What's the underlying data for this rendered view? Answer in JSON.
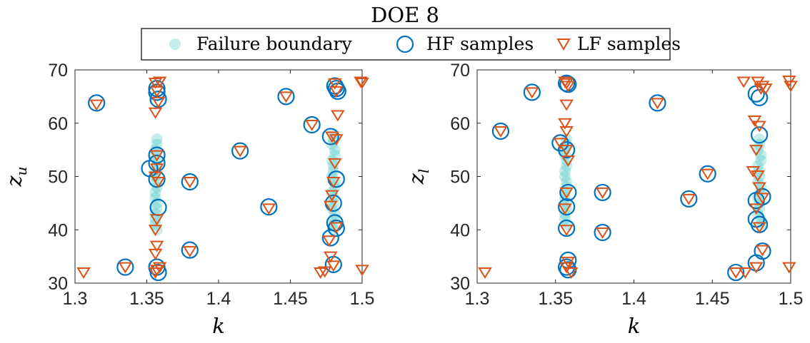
{
  "figure": {
    "title": "DOE 8",
    "legend": {
      "placement": "top-center",
      "entries": [
        {
          "label": "Failure boundary",
          "color": "#19b8b4",
          "marker": "filled-circle"
        },
        {
          "label": "HF samples",
          "color": "#0072bd",
          "marker": "open-circle"
        },
        {
          "label": "LF samples",
          "color": "#d95319",
          "marker": "open-down-triangle"
        }
      ]
    }
  },
  "chart_data": [
    {
      "type": "scatter",
      "title": "",
      "xlabel": "k",
      "ylabel": "z_u",
      "ylabel_main": "z",
      "ylabel_sub": "u",
      "xlim": [
        1.3,
        1.5
      ],
      "ylim": [
        30,
        70
      ],
      "xticks": [
        "1.3",
        "1.35",
        "1.4",
        "1.45",
        "1.5"
      ],
      "yticks": [
        "30",
        "40",
        "50",
        "60",
        "70"
      ],
      "grid": false,
      "series": [
        {
          "name": "Failure boundary",
          "color": "#19b8b4",
          "points": [
            [
              1.357,
              56
            ],
            [
              1.356,
              54
            ],
            [
              1.357,
              52
            ],
            [
              1.356,
              50
            ],
            [
              1.357,
              48
            ],
            [
              1.356,
              46
            ],
            [
              1.357,
              44
            ],
            [
              1.356,
              42
            ],
            [
              1.357,
              40
            ],
            [
              1.357,
              57
            ],
            [
              1.356,
              55
            ],
            [
              1.357,
              53
            ],
            [
              1.356,
              51
            ],
            [
              1.357,
              49
            ],
            [
              1.356,
              47
            ],
            [
              1.357,
              45
            ],
            [
              1.356,
              43
            ],
            [
              1.356,
              41
            ],
            [
              1.48,
              58
            ],
            [
              1.479,
              56
            ],
            [
              1.481,
              54
            ],
            [
              1.48,
              52
            ],
            [
              1.479,
              50
            ],
            [
              1.481,
              48
            ],
            [
              1.48,
              46
            ],
            [
              1.479,
              44
            ],
            [
              1.481,
              42
            ],
            [
              1.48,
              40
            ],
            [
              1.48,
              57
            ],
            [
              1.481,
              55
            ],
            [
              1.479,
              53
            ],
            [
              1.48,
              51
            ],
            [
              1.481,
              49
            ],
            [
              1.479,
              47
            ],
            [
              1.48,
              45
            ],
            [
              1.481,
              43
            ],
            [
              1.479,
              41
            ]
          ]
        },
        {
          "name": "HF samples",
          "color": "#0072bd",
          "points": [
            [
              1.315,
              63.8
            ],
            [
              1.335,
              33
            ],
            [
              1.352,
              51.5
            ],
            [
              1.357,
              66.5
            ],
            [
              1.357,
              65.8
            ],
            [
              1.358,
              64.5
            ],
            [
              1.357,
              54
            ],
            [
              1.357,
              52.5
            ],
            [
              1.357,
              49.5
            ],
            [
              1.358,
              44.2
            ],
            [
              1.357,
              33
            ],
            [
              1.358,
              32
            ],
            [
              1.38,
              49
            ],
            [
              1.38,
              36.2
            ],
            [
              1.415,
              54.8
            ],
            [
              1.435,
              44.3
            ],
            [
              1.447,
              65
            ],
            [
              1.465,
              59.7
            ],
            [
              1.478,
              57.5
            ],
            [
              1.481,
              67
            ],
            [
              1.482,
              66.5
            ],
            [
              1.483,
              66
            ],
            [
              1.482,
              49.5
            ],
            [
              1.48,
              45
            ],
            [
              1.481,
              41.3
            ],
            [
              1.482,
              40.3
            ],
            [
              1.478,
              38.5
            ],
            [
              1.48,
              33.5
            ]
          ]
        },
        {
          "name": "LF samples",
          "color": "#d95319",
          "points": [
            [
              1.306,
              32
            ],
            [
              1.315,
              63.5
            ],
            [
              1.335,
              33
            ],
            [
              1.356,
              67.6
            ],
            [
              1.359,
              67.8
            ],
            [
              1.357,
              66
            ],
            [
              1.358,
              64
            ],
            [
              1.356,
              62
            ],
            [
              1.357,
              54
            ],
            [
              1.357,
              51.5
            ],
            [
              1.356,
              50
            ],
            [
              1.358,
              49
            ],
            [
              1.357,
              42
            ],
            [
              1.356,
              40
            ],
            [
              1.357,
              37
            ],
            [
              1.356,
              35.5
            ],
            [
              1.359,
              33
            ],
            [
              1.357,
              32.5
            ],
            [
              1.356,
              32
            ],
            [
              1.38,
              49
            ],
            [
              1.38,
              36
            ],
            [
              1.415,
              54.8
            ],
            [
              1.435,
              44
            ],
            [
              1.447,
              65
            ],
            [
              1.465,
              59.7
            ],
            [
              1.471,
              32
            ],
            [
              1.474,
              32.2
            ],
            [
              1.478,
              35
            ],
            [
              1.477,
              38
            ],
            [
              1.479,
              57.5
            ],
            [
              1.481,
              67.5
            ],
            [
              1.482,
              66
            ],
            [
              1.483,
              61.5
            ],
            [
              1.481,
              52.5
            ],
            [
              1.48,
              49
            ],
            [
              1.479,
              46.5
            ],
            [
              1.478,
              44.5
            ],
            [
              1.482,
              40.5
            ],
            [
              1.48,
              33.3
            ],
            [
              1.482,
              57
            ],
            [
              1.499,
              67.8
            ],
            [
              1.5,
              67.6
            ],
            [
              1.5,
              32.5
            ]
          ]
        }
      ]
    },
    {
      "type": "scatter",
      "title": "",
      "xlabel": "k",
      "ylabel": "z_l",
      "ylabel_main": "z",
      "ylabel_sub": "l",
      "xlim": [
        1.3,
        1.5
      ],
      "ylim": [
        30,
        70
      ],
      "xticks": [
        "1.3",
        "1.35",
        "1.4",
        "1.45",
        "1.5"
      ],
      "yticks": [
        "30",
        "40",
        "50",
        "60",
        "70"
      ],
      "grid": false,
      "series": [
        {
          "name": "Failure boundary",
          "color": "#19b8b4",
          "points": [
            [
              1.357,
              57
            ],
            [
              1.356,
              55
            ],
            [
              1.357,
              53
            ],
            [
              1.356,
              51
            ],
            [
              1.357,
              49
            ],
            [
              1.356,
              47
            ],
            [
              1.357,
              45
            ],
            [
              1.356,
              43
            ],
            [
              1.357,
              41
            ],
            [
              1.357,
              56
            ],
            [
              1.356,
              54
            ],
            [
              1.357,
              52
            ],
            [
              1.356,
              50
            ],
            [
              1.357,
              48
            ],
            [
              1.356,
              46
            ],
            [
              1.357,
              44
            ],
            [
              1.356,
              42
            ],
            [
              1.48,
              57
            ],
            [
              1.479,
              55
            ],
            [
              1.481,
              53
            ],
            [
              1.48,
              51
            ],
            [
              1.479,
              49
            ],
            [
              1.481,
              47
            ],
            [
              1.48,
              45
            ],
            [
              1.479,
              43
            ],
            [
              1.481,
              41
            ],
            [
              1.48,
              56
            ],
            [
              1.481,
              54
            ],
            [
              1.479,
              52
            ],
            [
              1.48,
              50
            ],
            [
              1.481,
              48
            ],
            [
              1.479,
              46
            ],
            [
              1.48,
              44
            ],
            [
              1.481,
              42
            ]
          ]
        },
        {
          "name": "HF samples",
          "color": "#0072bd",
          "points": [
            [
              1.315,
              58.5
            ],
            [
              1.335,
              65.8
            ],
            [
              1.353,
              56.3
            ],
            [
              1.357,
              67.5
            ],
            [
              1.358,
              67.3
            ],
            [
              1.357,
              55
            ],
            [
              1.358,
              47
            ],
            [
              1.357,
              44.3
            ],
            [
              1.357,
              40.3
            ],
            [
              1.358,
              34.3
            ],
            [
              1.357,
              33
            ],
            [
              1.358,
              32.5
            ],
            [
              1.38,
              47
            ],
            [
              1.38,
              39.5
            ],
            [
              1.415,
              63.8
            ],
            [
              1.435,
              45.8
            ],
            [
              1.447,
              50.5
            ],
            [
              1.465,
              32
            ],
            [
              1.478,
              65.5
            ],
            [
              1.48,
              64.8
            ],
            [
              1.48,
              57.8
            ],
            [
              1.478,
              45.5
            ],
            [
              1.482,
              46.2
            ],
            [
              1.478,
              42
            ],
            [
              1.48,
              41
            ],
            [
              1.482,
              36
            ],
            [
              1.478,
              33.8
            ]
          ]
        },
        {
          "name": "LF samples",
          "color": "#d95319",
          "points": [
            [
              1.305,
              32
            ],
            [
              1.315,
              58.5
            ],
            [
              1.335,
              65.8
            ],
            [
              1.353,
              56.3
            ],
            [
              1.356,
              67.8
            ],
            [
              1.357,
              67.5
            ],
            [
              1.358,
              67
            ],
            [
              1.357,
              63.5
            ],
            [
              1.356,
              60
            ],
            [
              1.357,
              58.5
            ],
            [
              1.357,
              55
            ],
            [
              1.358,
              53
            ],
            [
              1.357,
              47
            ],
            [
              1.356,
              44
            ],
            [
              1.357,
              40
            ],
            [
              1.358,
              34
            ],
            [
              1.357,
              33
            ],
            [
              1.36,
              32
            ],
            [
              1.38,
              47
            ],
            [
              1.38,
              39.5
            ],
            [
              1.415,
              63.8
            ],
            [
              1.435,
              45.8
            ],
            [
              1.447,
              50.5
            ],
            [
              1.465,
              32
            ],
            [
              1.47,
              67.8
            ],
            [
              1.471,
              32
            ],
            [
              1.476,
              51
            ],
            [
              1.477,
              60.5
            ],
            [
              1.479,
              67.8
            ],
            [
              1.481,
              66.5
            ],
            [
              1.482,
              67
            ],
            [
              1.484,
              66.5
            ],
            [
              1.48,
              59.5
            ],
            [
              1.478,
              55
            ],
            [
              1.479,
              50.2
            ],
            [
              1.48,
              48
            ],
            [
              1.482,
              46
            ],
            [
              1.478,
              44
            ],
            [
              1.48,
              40.5
            ],
            [
              1.478,
              33
            ],
            [
              1.482,
              36.2
            ],
            [
              1.499,
              68
            ],
            [
              1.5,
              67
            ],
            [
              1.499,
              33
            ]
          ]
        }
      ]
    }
  ]
}
